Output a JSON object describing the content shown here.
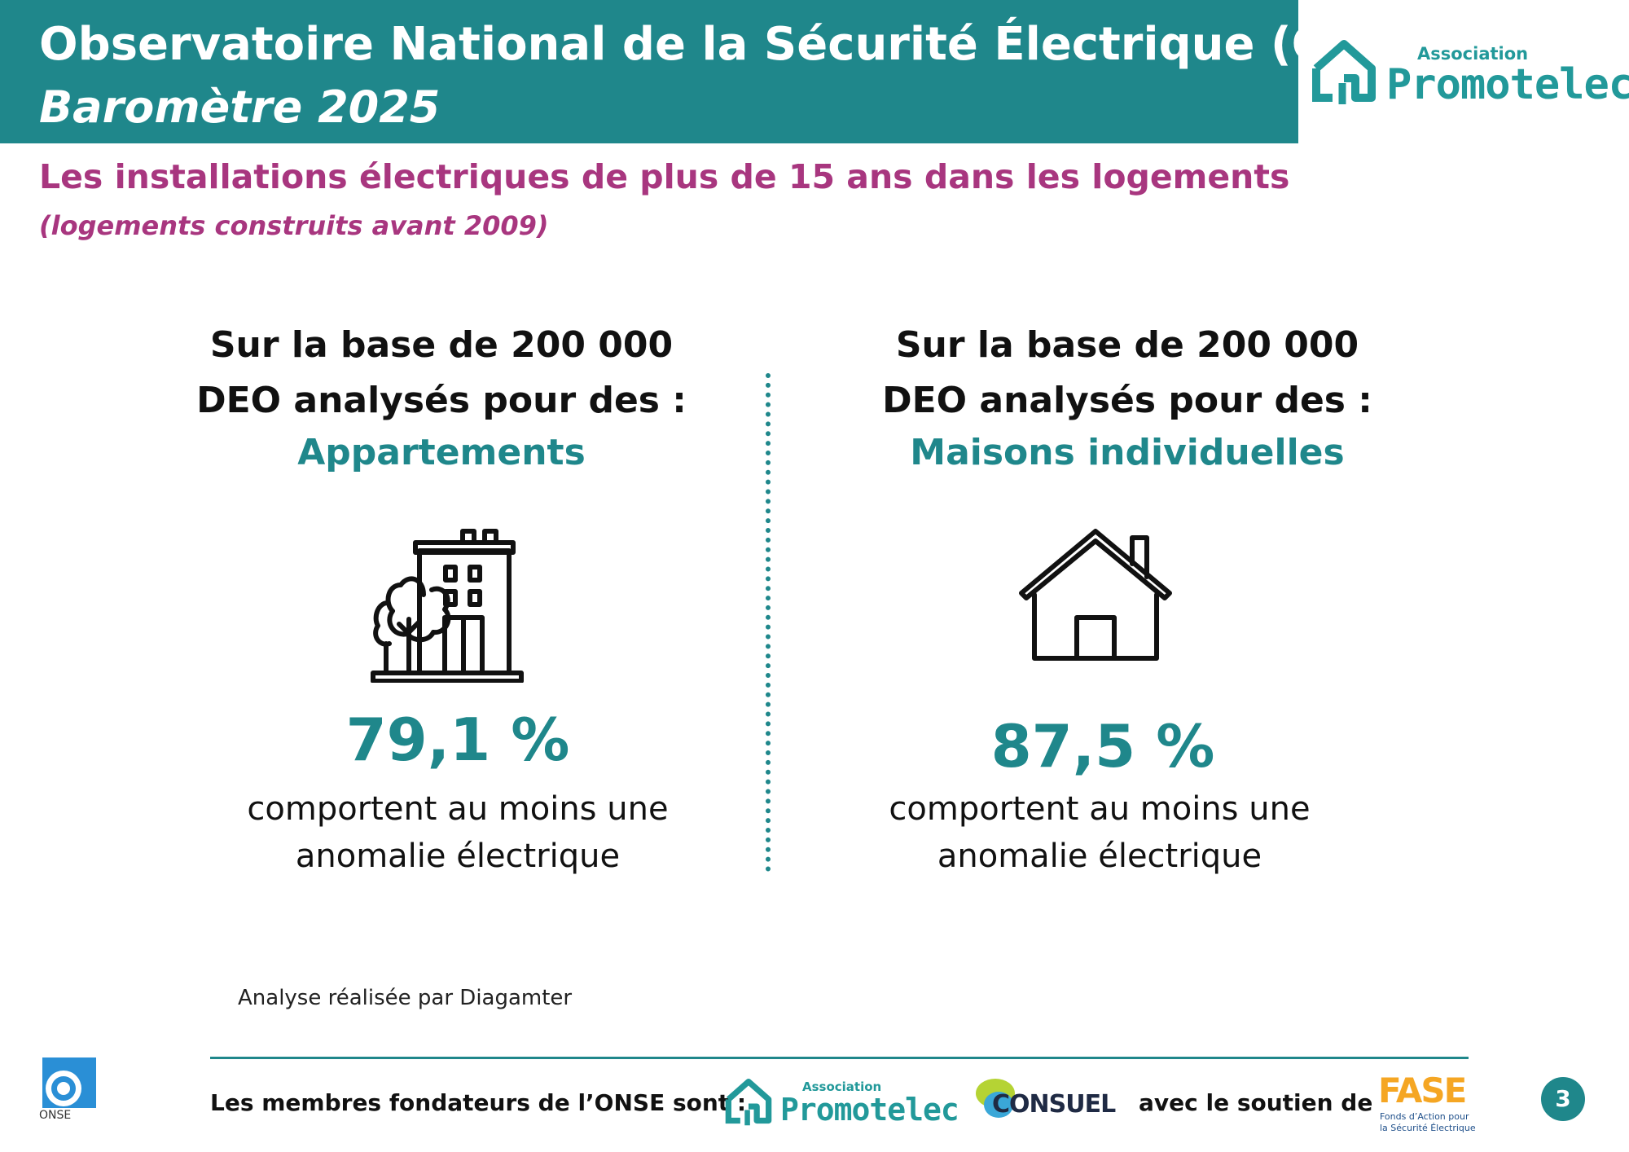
{
  "header": {
    "title": "Observatoire National de la Sécurité Électrique (ONSE)",
    "subtitle": "Baromètre 2025"
  },
  "brand_logo": {
    "small": "Association",
    "name": "Promotelec",
    "icon": "house-outline-icon",
    "color": "#22999a"
  },
  "section": {
    "title": "Les installations électriques de plus de 15 ans dans les logements",
    "note": "(logements construits avant 2009)"
  },
  "left": {
    "intro_line1": "Sur la base de 200 000",
    "intro_line2": "DEO analysés pour des :",
    "category": "Appartements",
    "icon": "apartment-building-icon",
    "stat": "79,1 %",
    "desc_line1": "comportent au moins une",
    "desc_line2": "anomalie électrique"
  },
  "right": {
    "intro_line1": "Sur la base de 200 000",
    "intro_line2": "DEO analysés pour des :",
    "category": "Maisons individuelles",
    "icon": "house-icon",
    "stat": "87,5 %",
    "desc_line1": "comportent au moins une",
    "desc_line2": "anomalie électrique"
  },
  "credit": "Analyse réalisée par Diagamter",
  "footer": {
    "onse_label": "ONSE",
    "members_text": "Les membres fondateurs de l’ONSE sont :",
    "promotelec_small": "Association",
    "promotelec_name": "Promotelec",
    "consuel_name": "CONSUEL",
    "support_text": "avec le soutien de",
    "fase_name": "FASE",
    "fase_tagline": "Fonds d’Action pour la Sécurité Électrique",
    "page_number": "3"
  },
  "colors": {
    "teal": "#1f878b",
    "magenta": "#a8367f",
    "fase_orange": "#f5a623",
    "fase_blue": "#2a6fb5"
  }
}
